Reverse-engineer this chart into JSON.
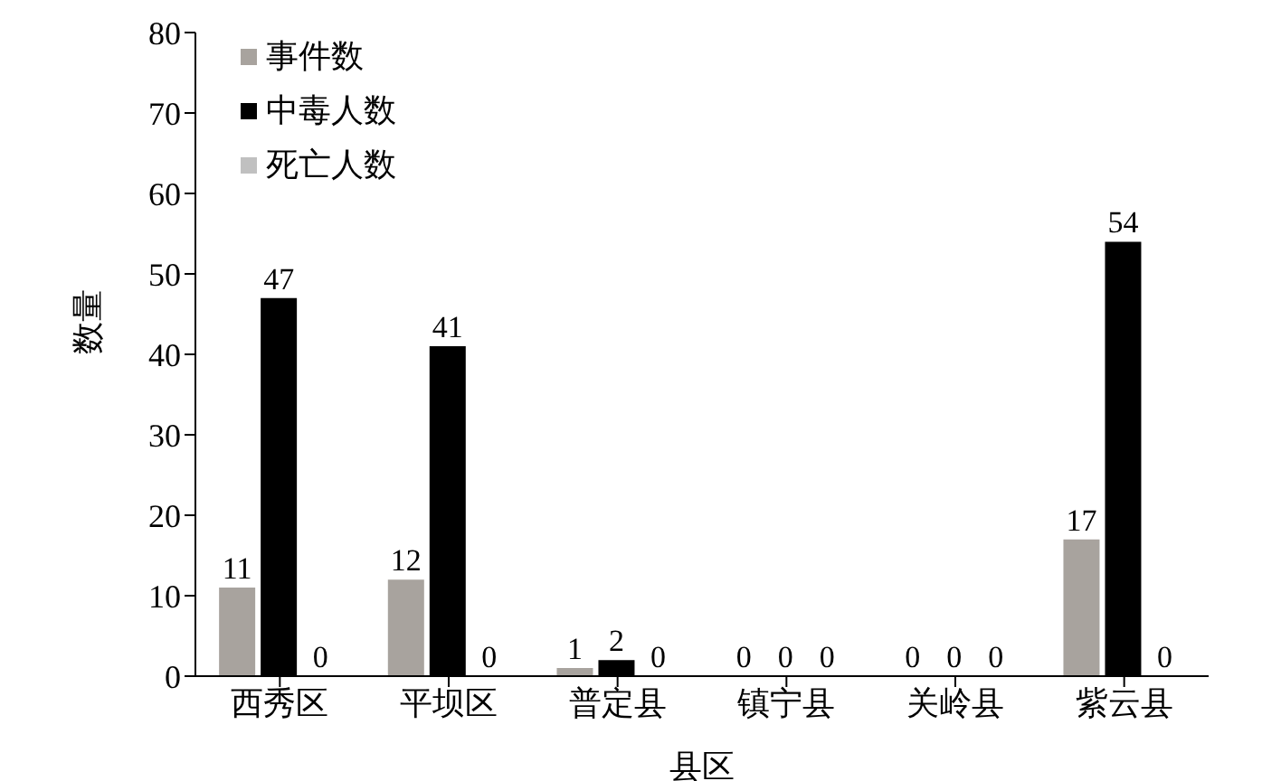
{
  "chart_data": {
    "type": "bar",
    "xlabel": "县区",
    "ylabel": "数量",
    "categories": [
      "西秀区",
      "平坝区",
      "普定县",
      "镇宁县",
      "关岭县",
      "紫云县"
    ],
    "series": [
      {
        "name": "事件数",
        "color": "#a8a39e",
        "values": [
          11,
          12,
          1,
          0,
          0,
          17
        ]
      },
      {
        "name": "中毒人数",
        "color": "#000000",
        "values": [
          47,
          41,
          2,
          0,
          0,
          54
        ]
      },
      {
        "name": "死亡人数",
        "color": "#c0c0c0",
        "values": [
          0,
          0,
          0,
          0,
          0,
          0
        ]
      }
    ],
    "ylim": [
      0,
      80
    ],
    "yticks": [
      0,
      10,
      20,
      30,
      40,
      50,
      60,
      70,
      80
    ],
    "grid": false,
    "legend": "top left",
    "data_labels": true
  }
}
